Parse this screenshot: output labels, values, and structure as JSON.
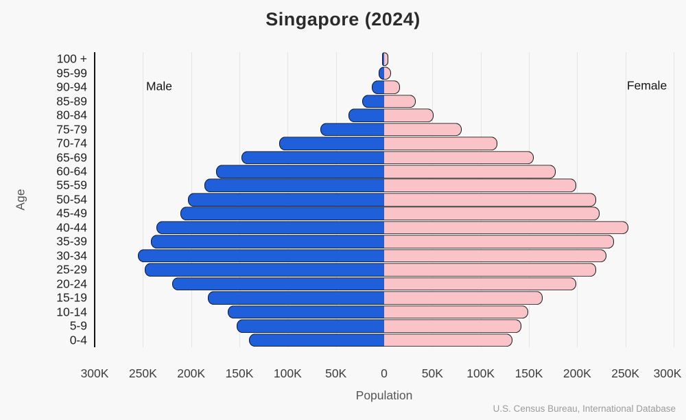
{
  "title": "Singapore (2024)",
  "labels": {
    "male": "Male",
    "female": "Female",
    "x_axis": "Population",
    "y_axis": "Age",
    "source": "U.S. Census Bureau, International Database"
  },
  "colors": {
    "male_fill": "#1f5fd9",
    "female_fill": "#f9c3c7",
    "bar_border": "#111111",
    "gridline": "#e4e4e4",
    "axis_line": "#111111",
    "background": "#f8f8f8",
    "title_text": "#2b2b2b",
    "muted_text": "#555555",
    "source_text": "#9b9b9b"
  },
  "chart_data": {
    "type": "bar",
    "subtype": "population-pyramid",
    "title": "Singapore (2024)",
    "xlabel": "Population",
    "ylabel": "Age",
    "grid": true,
    "legend_position": "inside-top",
    "categories_top_to_bottom": [
      "100 +",
      "95-99",
      "90-94",
      "85-89",
      "80-84",
      "75-79",
      "70-74",
      "65-69",
      "60-64",
      "55-59",
      "50-54",
      "45-49",
      "40-44",
      "35-39",
      "30-34",
      "25-29",
      "20-24",
      "15-19",
      "10-14",
      "5-9",
      "0-4"
    ],
    "series": [
      {
        "name": "Male",
        "side": "left",
        "color": "#1f5fd9",
        "values_thousands": [
          2,
          6,
          13,
          23,
          37,
          66,
          109,
          148,
          174,
          186,
          203,
          211,
          236,
          242,
          255,
          248,
          220,
          183,
          162,
          153,
          140
        ]
      },
      {
        "name": "Female",
        "side": "right",
        "color": "#f9c3c7",
        "values_thousands": [
          4,
          7,
          16,
          33,
          51,
          80,
          117,
          155,
          178,
          199,
          220,
          223,
          253,
          238,
          230,
          220,
          199,
          164,
          149,
          142,
          133
        ]
      }
    ],
    "x_tick_values_thousands": [
      -300,
      -250,
      -200,
      -150,
      -100,
      -50,
      0,
      50,
      100,
      150,
      200,
      250,
      300
    ],
    "x_tick_labels": [
      "300K",
      "250K",
      "200K",
      "150K",
      "100K",
      "50K",
      "0",
      "50K",
      "100K",
      "150K",
      "200K",
      "250K",
      "300K"
    ],
    "xlim_thousands": [
      -300,
      300
    ]
  }
}
